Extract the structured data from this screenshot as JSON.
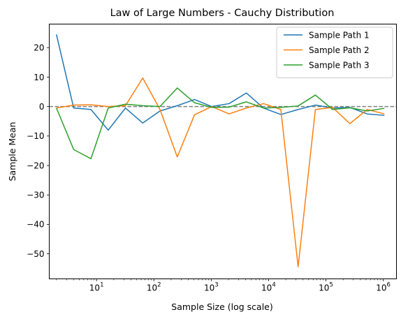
{
  "chart_data": {
    "type": "line",
    "title": "Law of Large Numbers - Cauchy Distribution",
    "xlabel": "Sample Size (log scale)",
    "ylabel": "Sample Mean",
    "xscale": "log",
    "xlim": [
      1.5,
      1700000
    ],
    "ylim": [
      -58.5,
      28
    ],
    "grid": false,
    "legend_position": "top-right",
    "reference_line": {
      "y": 0,
      "style": "dashed",
      "color": "#808080"
    },
    "x": [
      2,
      4,
      8,
      16,
      32,
      64,
      128,
      256,
      512,
      1024,
      2048,
      4096,
      8192,
      16384,
      32768,
      65536,
      131072,
      262144,
      524288,
      1048576
    ],
    "x_ticks": [
      {
        "value": 10,
        "base": "10",
        "exp": "1"
      },
      {
        "value": 100,
        "base": "10",
        "exp": "2"
      },
      {
        "value": 1000,
        "base": "10",
        "exp": "3"
      },
      {
        "value": 10000,
        "base": "10",
        "exp": "4"
      },
      {
        "value": 100000,
        "base": "10",
        "exp": "5"
      },
      {
        "value": 1000000,
        "base": "10",
        "exp": "6"
      }
    ],
    "y_ticks": [
      {
        "value": 20,
        "label": "20"
      },
      {
        "value": 10,
        "label": "10"
      },
      {
        "value": 0,
        "label": "0"
      },
      {
        "value": -10,
        "label": "−10"
      },
      {
        "value": -20,
        "label": "−20"
      },
      {
        "value": -30,
        "label": "−30"
      },
      {
        "value": -40,
        "label": "−40"
      },
      {
        "value": -50,
        "label": "−50"
      }
    ],
    "series": [
      {
        "name": "Sample Path 1",
        "color": "#1f77b4",
        "values": [
          24.5,
          -0.5,
          -1.0,
          -8.0,
          -0.5,
          -5.6,
          -1.5,
          0.3,
          2.4,
          0.0,
          1.0,
          4.6,
          -0.5,
          -2.7,
          -1.0,
          0.5,
          -0.5,
          -0.3,
          -2.5,
          -3.0
        ]
      },
      {
        "name": "Sample Path 2",
        "color": "#ff7f0e",
        "values": [
          -0.5,
          0.5,
          0.6,
          0.0,
          0.3,
          9.7,
          -1.0,
          -17.1,
          -2.8,
          0.0,
          -2.5,
          -0.5,
          1.0,
          -1.0,
          -54.4,
          -1.0,
          -0.3,
          -5.8,
          -1.0,
          -2.5
        ]
      },
      {
        "name": "Sample Path 3",
        "color": "#2ca02c",
        "values": [
          -0.5,
          -14.6,
          -17.7,
          -0.5,
          0.8,
          0.3,
          0.0,
          6.3,
          1.3,
          -0.3,
          -0.2,
          1.6,
          -0.5,
          -0.3,
          0.2,
          3.9,
          -1.0,
          -0.4,
          -1.5,
          -0.6
        ]
      }
    ]
  }
}
